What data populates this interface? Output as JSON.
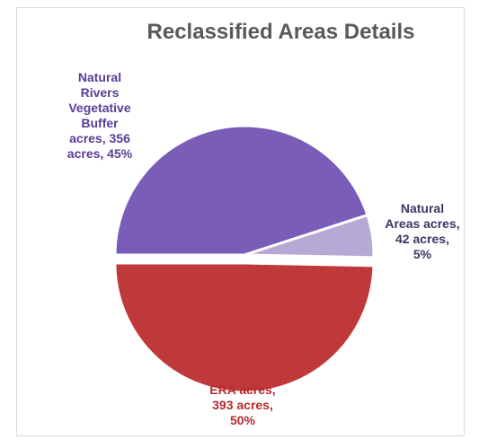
{
  "chart_data": {
    "type": "pie",
    "title": "Reclassified Areas Details",
    "slices": [
      {
        "label": "Natural Rivers Vegetative Buffer acres",
        "value": 356,
        "unit": "acres",
        "percent": 45,
        "color": "#7a5db8",
        "label_color": "#5a3d96",
        "data_label": "Natural\nRivers\nVegetative\nBuffer\nacres, 356\nacres, 45%"
      },
      {
        "label": "Natural Areas acres",
        "value": 42,
        "unit": "acres",
        "percent": 5,
        "color": "#b6a9d6",
        "label_color": "#3f3464",
        "data_label": "Natural\nAreas acres,\n42 acres,\n5%"
      },
      {
        "label": "ERA acres",
        "value": 393,
        "unit": "acres",
        "percent": 50,
        "color": "#c0393a",
        "label_color": "#b8292d",
        "data_label": "ERA acres,\n393 acres,\n50%"
      }
    ],
    "exploded_slice": "ERA acres",
    "legend": "none"
  }
}
